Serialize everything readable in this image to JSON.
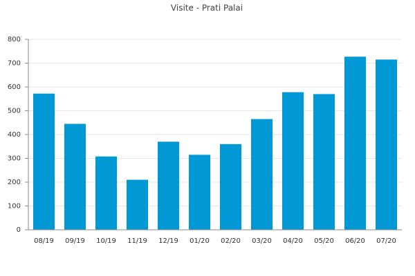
{
  "chart_data": {
    "type": "bar",
    "title": "Visite - Prati Palai",
    "categories": [
      "08/19",
      "09/19",
      "10/19",
      "11/19",
      "12/19",
      "01/20",
      "02/20",
      "03/20",
      "04/20",
      "05/20",
      "06/20",
      "07/20"
    ],
    "values": [
      572,
      445,
      308,
      210,
      370,
      315,
      360,
      465,
      578,
      570,
      727,
      715
    ],
    "color": "#0099d6",
    "ylim": [
      0,
      800
    ],
    "yticks": [
      0,
      100,
      200,
      300,
      400,
      500,
      600,
      700,
      800
    ],
    "grid": true
  }
}
